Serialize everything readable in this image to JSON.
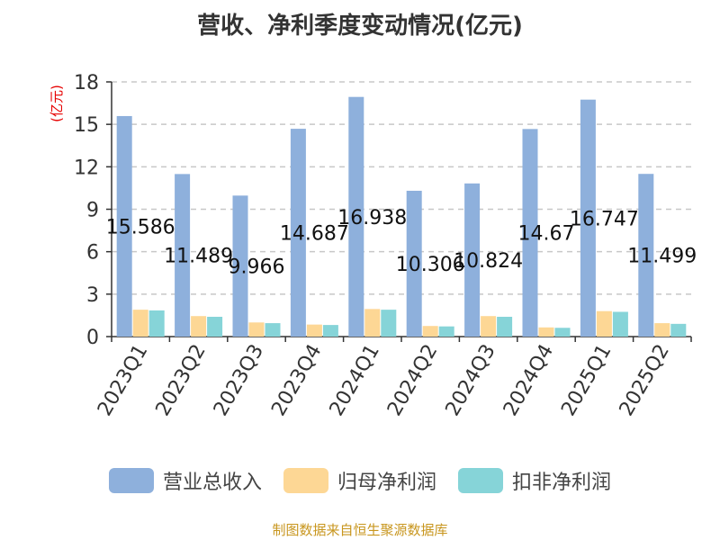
{
  "chart_data": {
    "type": "bar",
    "title": "营收、净利季度变动情况(亿元)",
    "ylabel": "(亿元)",
    "xlabel": "",
    "categories": [
      "2023Q1",
      "2023Q2",
      "2023Q3",
      "2023Q4",
      "2024Q1",
      "2024Q2",
      "2024Q3",
      "2024Q4",
      "2025Q1",
      "2025Q2"
    ],
    "ylim": [
      0,
      18
    ],
    "yticks": [
      0,
      3,
      6,
      9,
      12,
      15,
      18
    ],
    "grid": true,
    "legend_position": "bottom",
    "series": [
      {
        "name": "营业总收入",
        "color": "#8eb0dc",
        "values": [
          15.586,
          11.489,
          9.966,
          14.687,
          16.938,
          10.306,
          10.824,
          14.67,
          16.747,
          11.499
        ],
        "labels": [
          "15.586",
          "11.489",
          "9.966",
          "14.687",
          "16.938",
          "10.306",
          "10.824",
          "14.67",
          "16.747",
          "11.499"
        ]
      },
      {
        "name": "归母净利润",
        "color": "#fdd795",
        "values": [
          1.9,
          1.45,
          1.0,
          0.85,
          1.95,
          0.75,
          1.45,
          0.65,
          1.8,
          0.95
        ]
      },
      {
        "name": "扣非净利润",
        "color": "#86d4d8",
        "values": [
          1.85,
          1.4,
          0.95,
          0.82,
          1.9,
          0.72,
          1.4,
          0.62,
          1.75,
          0.9
        ]
      }
    ]
  },
  "source_note": "制图数据来自恒生聚源数据库"
}
